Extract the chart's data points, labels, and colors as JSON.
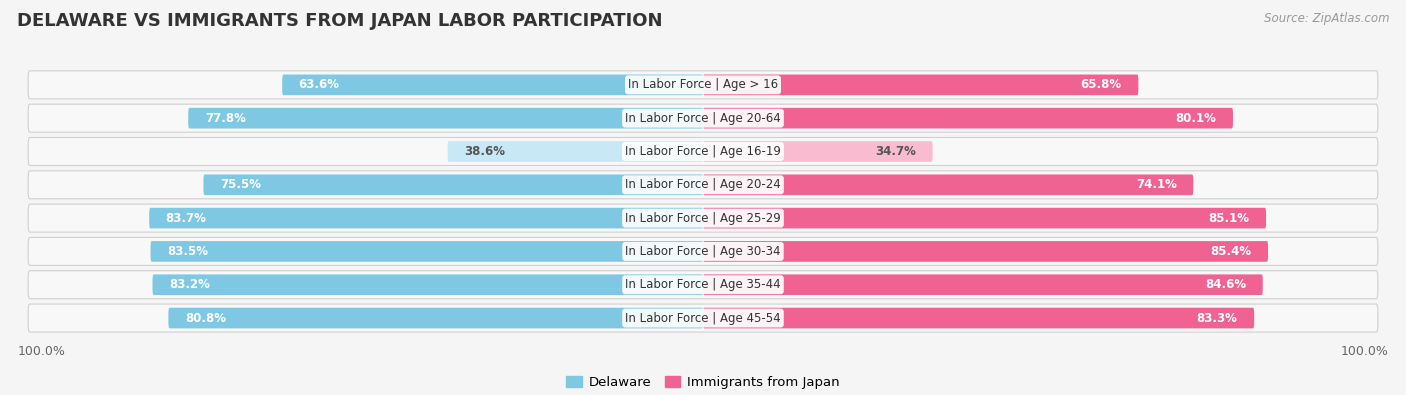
{
  "title": "DELAWARE VS IMMIGRANTS FROM JAPAN LABOR PARTICIPATION",
  "source": "Source: ZipAtlas.com",
  "categories": [
    "In Labor Force | Age > 16",
    "In Labor Force | Age 20-64",
    "In Labor Force | Age 16-19",
    "In Labor Force | Age 20-24",
    "In Labor Force | Age 25-29",
    "In Labor Force | Age 30-34",
    "In Labor Force | Age 35-44",
    "In Labor Force | Age 45-54"
  ],
  "delaware_values": [
    63.6,
    77.8,
    38.6,
    75.5,
    83.7,
    83.5,
    83.2,
    80.8
  ],
  "japan_values": [
    65.8,
    80.1,
    34.7,
    74.1,
    85.1,
    85.4,
    84.6,
    83.3
  ],
  "delaware_color": "#7ec8e3",
  "delaware_color_light": "#c9e8f5",
  "japan_color": "#f06292",
  "japan_color_light": "#f8bbd0",
  "bar_height": 0.62,
  "row_bg_color": "#e8e8e8",
  "row_bg_light": "#f2f2f2",
  "background_color": "#f5f5f5",
  "label_fontsize": 8.5,
  "title_fontsize": 13,
  "value_fontsize": 8.5,
  "max_val": 100,
  "legend_labels": [
    "Delaware",
    "Immigrants from Japan"
  ],
  "axis_tick_label": "100.0%"
}
